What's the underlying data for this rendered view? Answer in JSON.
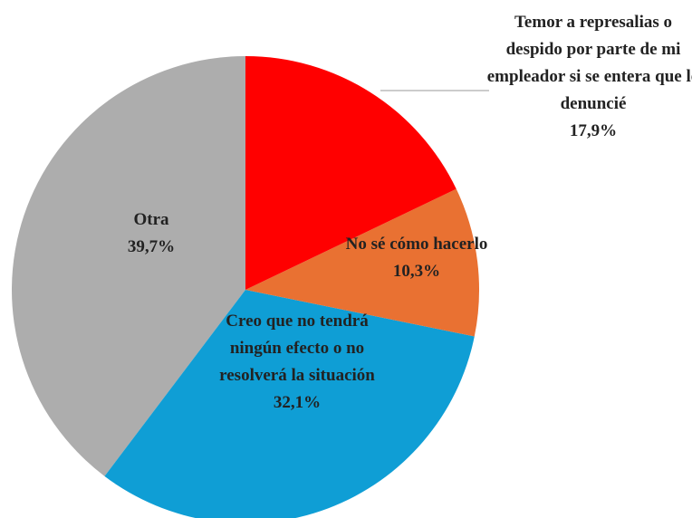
{
  "chart_data": {
    "type": "pie",
    "categories": [
      "Temor a represalias o despido por parte de mi empleador si se entera que lo denuncié",
      "No sé cómo hacerlo",
      "Creo que no tendrá ningún efecto o no resolverá la situación",
      "Otra"
    ],
    "values": [
      17.9,
      10.3,
      32.1,
      39.7
    ],
    "value_labels": [
      "17,9%",
      "10,3%",
      "32,1%",
      "39,7%"
    ],
    "colors": [
      "#ff0000",
      "#e97132",
      "#0f9ed5",
      "#adadad"
    ]
  }
}
